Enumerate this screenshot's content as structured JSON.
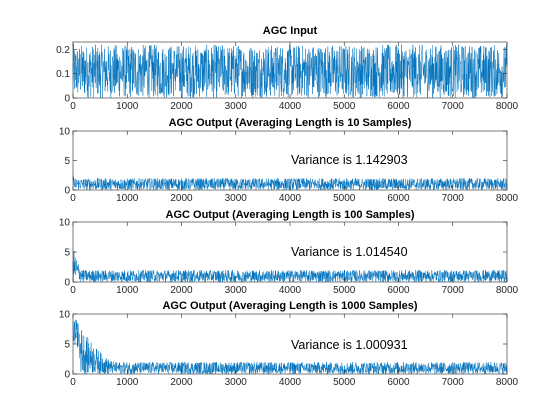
{
  "colors": {
    "series": "#0072BD",
    "axis": "#262626",
    "background": "#ffffff"
  },
  "chart_data": [
    {
      "type": "line",
      "title": "AGC Input",
      "xlabel": "",
      "ylabel": "",
      "xlim": [
        0,
        8000
      ],
      "ylim": [
        0,
        0.23
      ],
      "xticks": [
        0,
        1000,
        2000,
        3000,
        4000,
        5000,
        6000,
        7000,
        8000
      ],
      "yticks": [
        0,
        0.1,
        0.2
      ],
      "ytick_labels": [
        "0",
        "0.1",
        "0.2"
      ],
      "grid": false,
      "annotation": "",
      "series": [
        {
          "values_summary": {
            "length": 8000,
            "mean": 0.1,
            "min": 0.0,
            "max": 0.22,
            "shape": "noisy band between 0 and 0.22 around 0.1"
          }
        }
      ]
    },
    {
      "type": "line",
      "title": "AGC Output (Averaging Length is 10 Samples)",
      "xlabel": "",
      "ylabel": "",
      "xlim": [
        0,
        8000
      ],
      "ylim": [
        0,
        10
      ],
      "xticks": [
        0,
        1000,
        2000,
        3000,
        4000,
        5000,
        6000,
        7000,
        8000
      ],
      "yticks": [
        0,
        5,
        10
      ],
      "ytick_labels": [
        "0",
        "5",
        "10"
      ],
      "grid": false,
      "annotation": "Variance is 1.142903",
      "series": [
        {
          "values_summary": {
            "length": 8000,
            "initial_peak": 2.6,
            "steady_min": 0.0,
            "steady_max": 2.0,
            "shape": "noisy band 0–2 from start"
          }
        }
      ]
    },
    {
      "type": "line",
      "title": "AGC Output (Averaging Length is 100 Samples)",
      "xlabel": "",
      "ylabel": "",
      "xlim": [
        0,
        8000
      ],
      "ylim": [
        0,
        10
      ],
      "xticks": [
        0,
        1000,
        2000,
        3000,
        4000,
        5000,
        6000,
        7000,
        8000
      ],
      "yticks": [
        0,
        5,
        10
      ],
      "ytick_labels": [
        "0",
        "5",
        "10"
      ],
      "grid": false,
      "annotation": "Variance is 1.014540",
      "series": [
        {
          "values_summary": {
            "length": 8000,
            "initial_peak": 5.8,
            "settle_samples": 200,
            "steady_min": 0.0,
            "steady_max": 2.0,
            "shape": "spike to ~5.8 at start, decays to 0–2 band"
          }
        }
      ]
    },
    {
      "type": "line",
      "title": "AGC Output (Averaging Length is 1000 Samples)",
      "xlabel": "",
      "ylabel": "",
      "xlim": [
        0,
        8000
      ],
      "ylim": [
        0,
        10
      ],
      "xticks": [
        0,
        1000,
        2000,
        3000,
        4000,
        5000,
        6000,
        7000,
        8000
      ],
      "yticks": [
        0,
        5,
        10
      ],
      "ytick_labels": [
        "0",
        "5",
        "10"
      ],
      "grid": false,
      "annotation": "Variance is 1.000931",
      "series": [
        {
          "values_summary": {
            "length": 8000,
            "initial_peak": 10,
            "settle_samples": 800,
            "steady_min": 0.0,
            "steady_max": 2.0,
            "shape": "high values near 10 at start, slow decay over ~800 samples to 0–2 band"
          }
        }
      ]
    }
  ]
}
